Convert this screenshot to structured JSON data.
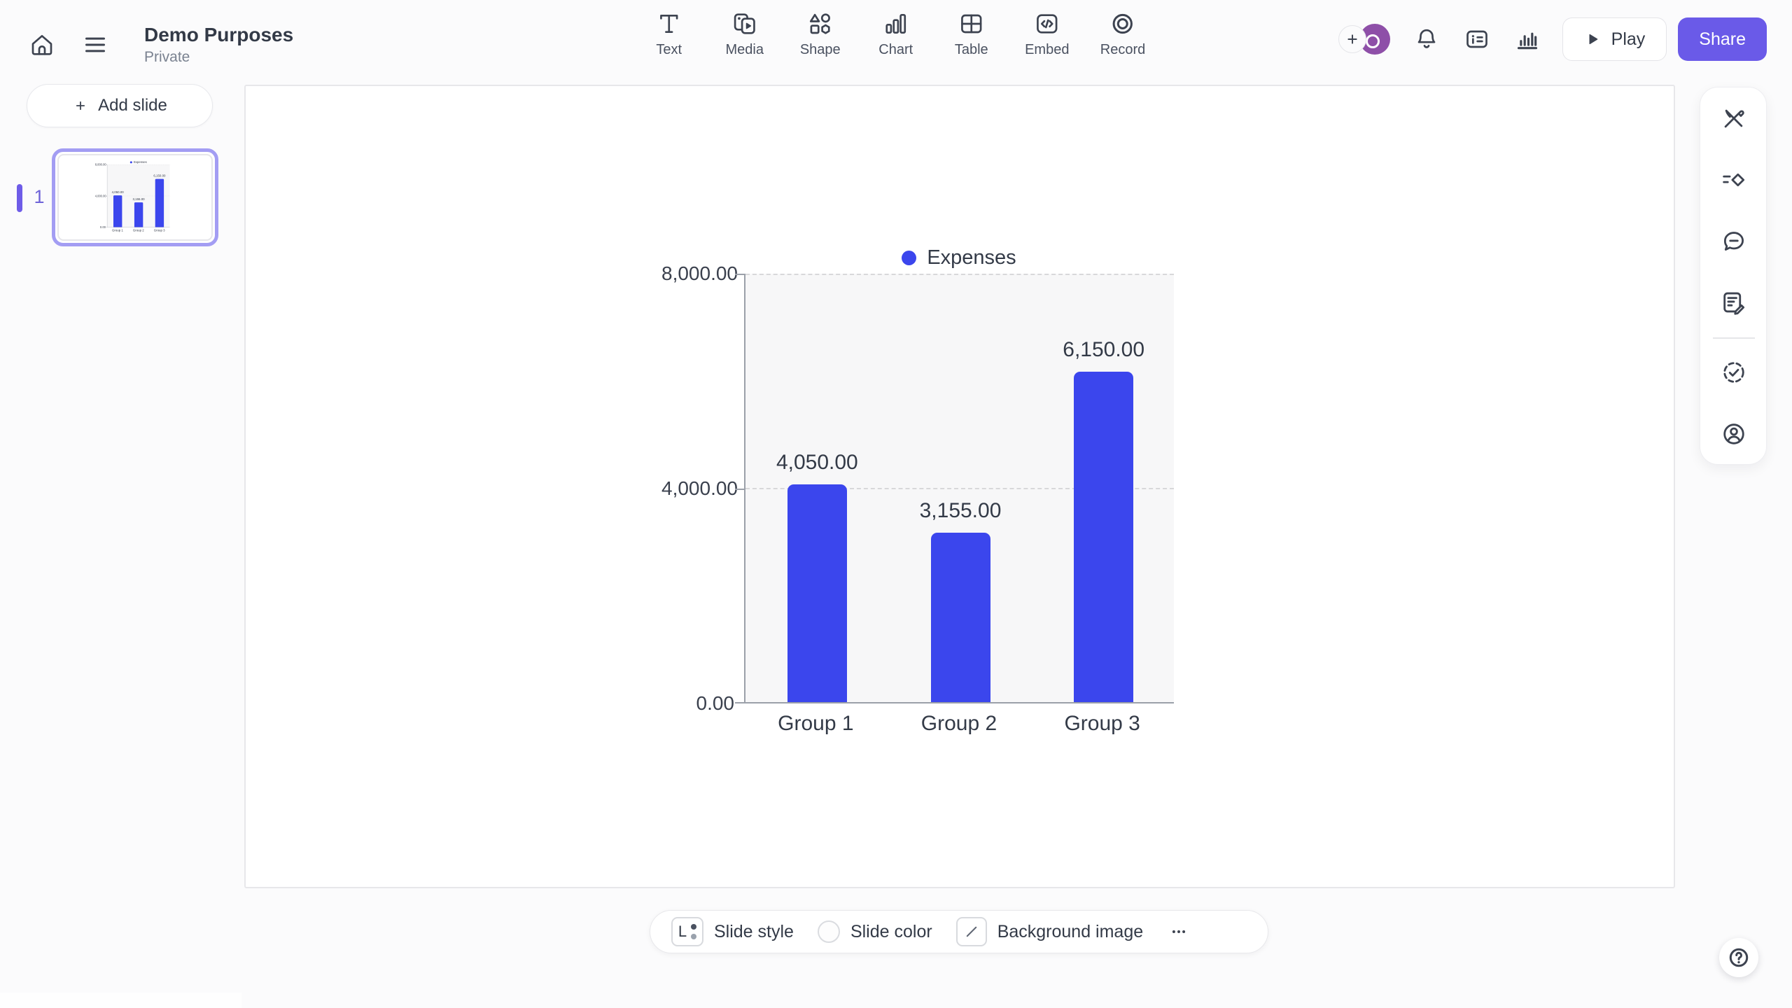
{
  "header": {
    "title": "Demo Purposes",
    "subtitle": "Private",
    "play_label": "Play",
    "share_label": "Share",
    "insert_toolbar": [
      {
        "label": "Text",
        "icon": "text-icon"
      },
      {
        "label": "Media",
        "icon": "media-icon"
      },
      {
        "label": "Shape",
        "icon": "shape-icon"
      },
      {
        "label": "Chart",
        "icon": "chart-icon"
      },
      {
        "label": "Table",
        "icon": "table-icon"
      },
      {
        "label": "Embed",
        "icon": "embed-icon"
      },
      {
        "label": "Record",
        "icon": "record-icon"
      }
    ]
  },
  "sidebar": {
    "add_slide_label": "Add slide",
    "slides": [
      {
        "number": "1",
        "selected": true
      }
    ]
  },
  "chart_data": {
    "type": "bar",
    "title": "",
    "categories": [
      "Group 1",
      "Group 2",
      "Group 3"
    ],
    "series": [
      {
        "name": "Expenses",
        "values": [
          4050,
          3155,
          6150
        ]
      }
    ],
    "value_labels": [
      "4,050.00",
      "3,155.00",
      "6,150.00"
    ],
    "y_ticks": [
      {
        "value": 0,
        "label": "0.00"
      },
      {
        "value": 4000,
        "label": "4,000.00"
      },
      {
        "value": 8000,
        "label": "8,000.00"
      }
    ],
    "ylim": [
      0,
      8000
    ],
    "grid": "horizontal-dashed",
    "legend_position": "top",
    "bar_color": "#3b46ed"
  },
  "bottom_toolbar": {
    "slide_style_label": "Slide style",
    "slide_style_badge": "L",
    "slide_color_label": "Slide color",
    "background_image_label": "Background image"
  },
  "right_toolbar": {
    "icons": [
      "design-tools-icon",
      "arrange-icon",
      "comments-icon",
      "notes-icon",
      "status-check-icon",
      "profile-icon"
    ]
  },
  "colors": {
    "accent_purple": "#6a5ae8",
    "bar_blue": "#3b46ed",
    "selection_purple": "#a39df3",
    "avatar_purple": "#8e4fa8"
  }
}
